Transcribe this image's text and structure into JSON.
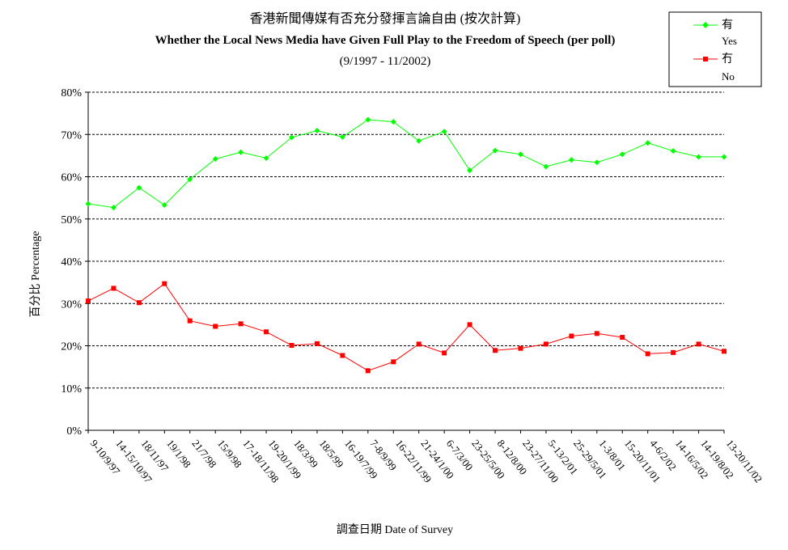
{
  "chart_data": {
    "type": "line",
    "title_zh": "香港新聞傳媒有否充分發揮言論自由 (按次計算)",
    "title_en": "Whether the Local News Media have Given Full Play to the Freedom of Speech (per poll)",
    "subtitle": "(9/1997 - 11/2002)",
    "xlabel": "調查日期 Date of Survey",
    "ylabel": "百分比 Percentage",
    "ylim": [
      0,
      80
    ],
    "yticks": [
      "0%",
      "10%",
      "20%",
      "30%",
      "40%",
      "50%",
      "60%",
      "70%",
      "80%"
    ],
    "grid": true,
    "legend_position": "top-right",
    "categories": [
      "9-10/9/97",
      "14-15/10/97",
      "18/11/97",
      "19/1/98",
      "21/7/98",
      "15/9/98",
      "17-18/11/98",
      "19-20/1/99",
      "18/3/99",
      "18/5/99",
      "16-19/7/99",
      "7-8/9/99",
      "16-22/11/99",
      "21-24/1/00",
      "6-7/3/00",
      "23-25/5/00",
      "8-12/8/00",
      "23-27/11/00",
      "5-13/2/01",
      "25-29/5/01",
      "1-3/8/01",
      "15-20/11/01",
      "4-6/2/02",
      "14-16/5/02",
      "14-19/8/02",
      "13-20/11/02"
    ],
    "series": [
      {
        "name_zh": "有",
        "name_en": "Yes",
        "color": "#00ff00",
        "marker": "diamond",
        "values": [
          53.6,
          52.7,
          57.4,
          53.3,
          59.4,
          64.2,
          65.8,
          64.4,
          69.3,
          70.9,
          69.4,
          73.5,
          73.0,
          68.5,
          70.7,
          61.5,
          66.2,
          65.3,
          62.4,
          64.0,
          63.4,
          65.3,
          68.0,
          66.1,
          64.7,
          64.7
        ]
      },
      {
        "name_zh": "冇",
        "name_en": "No",
        "color": "#ff0000",
        "marker": "square",
        "values": [
          30.6,
          33.6,
          30.2,
          34.7,
          25.9,
          24.6,
          25.2,
          23.3,
          20.1,
          20.5,
          17.7,
          14.1,
          16.2,
          20.4,
          18.3,
          25.0,
          18.9,
          19.4,
          20.4,
          22.3,
          22.9,
          22.0,
          18.1,
          18.4,
          20.4,
          18.7
        ]
      }
    ]
  }
}
